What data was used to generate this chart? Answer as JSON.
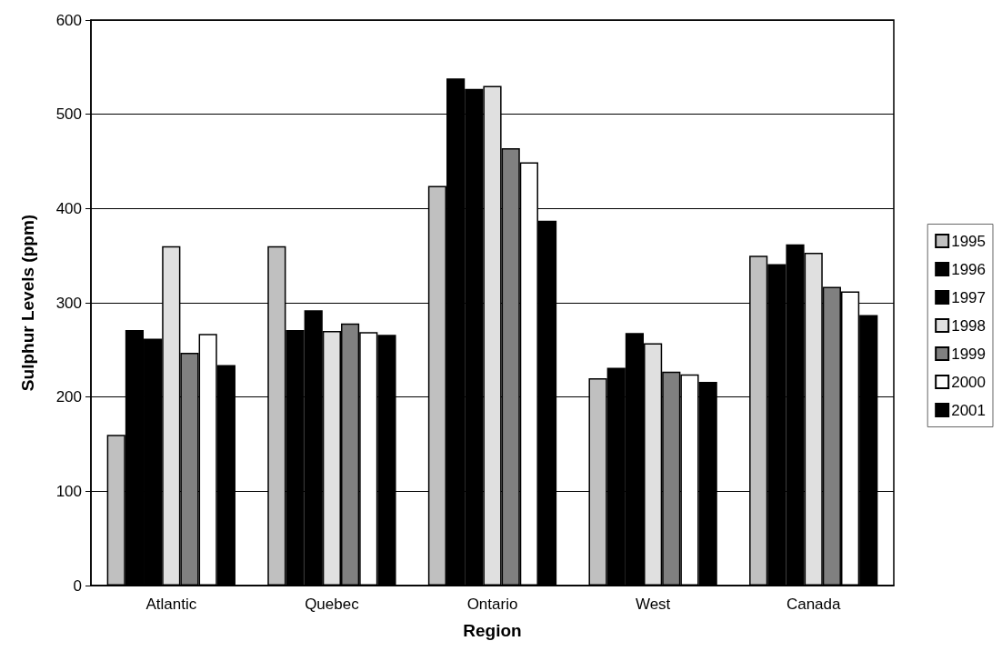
{
  "chart_data": {
    "type": "bar",
    "xlabel": "Region",
    "ylabel": "Sulphur Levels (ppm)",
    "categories": [
      "Atlantic",
      "Quebec",
      "Ontario",
      "West",
      "Canada"
    ],
    "series": [
      {
        "name": "1995",
        "color": "#c0c0c0",
        "values": [
          160,
          360,
          424,
          220,
          350
        ]
      },
      {
        "name": "1996",
        "color": "#000000",
        "values": [
          271,
          271,
          538,
          231,
          341
        ]
      },
      {
        "name": "1997",
        "color": "#000000",
        "values": [
          262,
          292,
          527,
          268,
          362
        ]
      },
      {
        "name": "1998",
        "color": "#e0e0e0",
        "values": [
          360,
          270,
          530,
          257,
          353
        ]
      },
      {
        "name": "1999",
        "color": "#808080",
        "values": [
          247,
          278,
          464,
          227,
          317
        ]
      },
      {
        "name": "2000",
        "color": "#ffffff",
        "values": [
          267,
          269,
          449,
          224,
          312
        ]
      },
      {
        "name": "2001",
        "color": "#000000",
        "values": [
          234,
          266,
          387,
          216,
          287
        ]
      }
    ],
    "ylim": [
      0,
      600
    ],
    "yticks": [
      0,
      100,
      200,
      300,
      400,
      500,
      600
    ],
    "grid": "y",
    "legend": "right"
  }
}
